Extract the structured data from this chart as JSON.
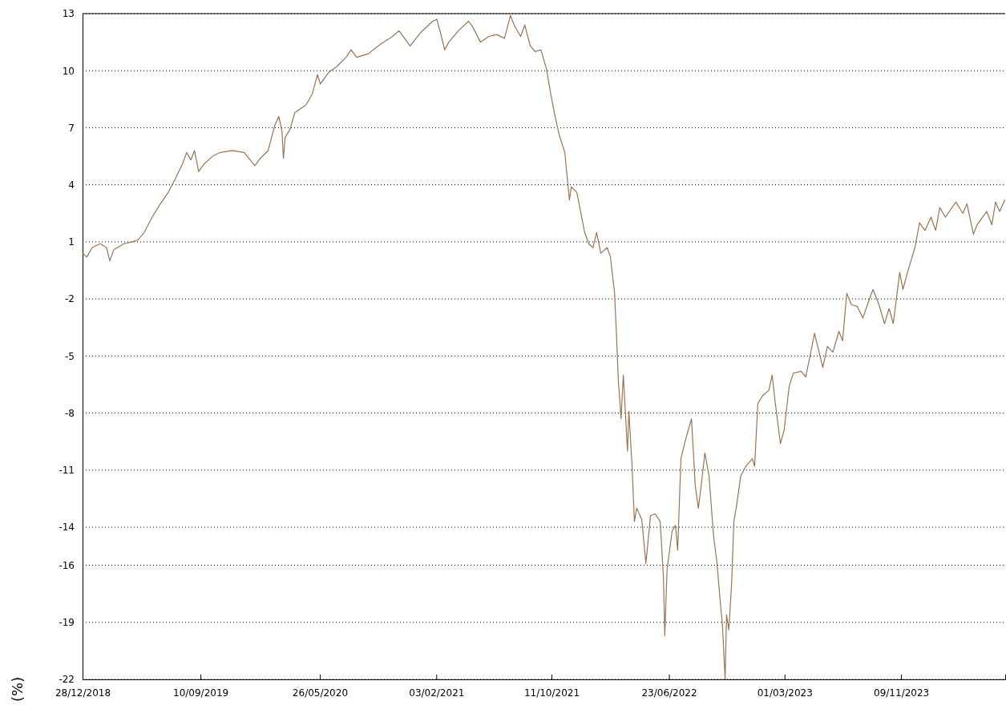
{
  "chart_data": {
    "type": "line",
    "ylabel": "(%)",
    "xlim": [
      "2018-12-28",
      "2024-06-22"
    ],
    "xticks": [
      {
        "value": "2018-12-28",
        "label": "28/12/2018"
      },
      {
        "value": "2019-09-10",
        "label": "10/09/2019"
      },
      {
        "value": "2020-05-26",
        "label": "26/05/2020"
      },
      {
        "value": "2021-02-03",
        "label": "03/02/2021"
      },
      {
        "value": "2021-10-11",
        "label": "11/10/2021"
      },
      {
        "value": "2022-06-23",
        "label": "23/06/2022"
      },
      {
        "value": "2023-03-01",
        "label": "01/03/2023"
      },
      {
        "value": "2023-11-09",
        "label": "09/11/2023"
      }
    ],
    "ylim": [
      -22,
      13
    ],
    "yticks": [
      13,
      10,
      7,
      4,
      1,
      -2,
      -5,
      -8,
      -11,
      -14,
      -16,
      -19,
      -22
    ],
    "grid": "y",
    "line_style": "solid",
    "marker": "none",
    "series": [
      {
        "color": "#9a7452",
        "x": [
          "2018-12-28",
          "2019-01-06",
          "2019-01-18",
          "2019-02-04",
          "2019-02-18",
          "2019-02-25",
          "2019-03-06",
          "2019-03-28",
          "2019-04-15",
          "2019-04-27",
          "2019-05-11",
          "2019-05-28",
          "2019-06-15",
          "2019-07-02",
          "2019-07-19",
          "2019-08-02",
          "2019-08-11",
          "2019-08-20",
          "2019-08-28",
          "2019-09-06",
          "2019-09-18",
          "2019-10-06",
          "2019-10-23",
          "2019-11-18",
          "2019-12-14",
          "2020-01-06",
          "2020-01-18",
          "2020-02-04",
          "2020-02-18",
          "2020-02-27",
          "2020-03-05",
          "2020-03-08",
          "2020-03-12",
          "2020-03-22",
          "2020-04-02",
          "2020-04-14",
          "2020-04-26",
          "2020-05-10",
          "2020-05-21",
          "2020-05-27",
          "2020-06-14",
          "2020-07-01",
          "2020-07-22",
          "2020-08-02",
          "2020-08-14",
          "2020-09-09",
          "2020-10-05",
          "2020-10-31",
          "2020-11-14",
          "2020-11-26",
          "2020-12-08",
          "2020-12-31",
          "2021-01-26",
          "2021-02-04",
          "2021-02-12",
          "2021-02-21",
          "2021-03-02",
          "2021-03-23",
          "2021-04-14",
          "2021-04-23",
          "2021-05-10",
          "2021-05-28",
          "2021-06-14",
          "2021-07-01",
          "2021-07-14",
          "2021-07-22",
          "2021-08-05",
          "2021-08-14",
          "2021-08-26",
          "2021-09-06",
          "2021-09-18",
          "2021-09-30",
          "2021-10-10",
          "2021-10-17",
          "2021-10-28",
          "2021-11-09",
          "2021-11-12",
          "2021-11-19",
          "2021-11-23",
          "2021-12-05",
          "2021-12-14",
          "2021-12-22",
          "2021-12-31",
          "2022-01-09",
          "2022-01-17",
          "2022-01-26",
          "2022-02-09",
          "2022-02-16",
          "2022-02-25",
          "2022-03-02",
          "2022-03-05",
          "2022-03-11",
          "2022-03-16",
          "2022-03-25",
          "2022-03-28",
          "2022-04-04",
          "2022-04-09",
          "2022-04-14",
          "2022-04-25",
          "2022-05-04",
          "2022-05-14",
          "2022-05-24",
          "2022-06-04",
          "2022-06-11",
          "2022-06-14",
          "2022-06-19",
          "2022-06-30",
          "2022-07-07",
          "2022-07-12",
          "2022-07-19",
          "2022-07-29",
          "2022-08-11",
          "2022-08-19",
          "2022-08-26",
          "2022-09-02",
          "2022-09-09",
          "2022-09-18",
          "2022-09-28",
          "2022-10-05",
          "2022-10-12",
          "2022-10-17",
          "2022-10-23",
          "2022-10-26",
          "2022-10-31",
          "2022-11-06",
          "2022-11-11",
          "2022-11-16",
          "2022-11-26",
          "2022-12-07",
          "2022-12-21",
          "2022-12-26",
          "2023-01-02",
          "2023-01-12",
          "2023-01-26",
          "2023-02-02",
          "2023-02-09",
          "2023-02-20",
          "2023-02-28",
          "2023-03-11",
          "2023-03-20",
          "2023-04-06",
          "2023-04-16",
          "2023-04-27",
          "2023-05-05",
          "2023-05-23",
          "2023-06-02",
          "2023-06-14",
          "2023-06-27",
          "2023-07-05",
          "2023-07-14",
          "2023-07-24",
          "2023-08-06",
          "2023-08-18",
          "2023-08-28",
          "2023-09-09",
          "2023-09-22",
          "2023-10-04",
          "2023-10-14",
          "2023-10-23",
          "2023-11-06",
          "2023-11-13",
          "2023-11-23",
          "2023-12-09",
          "2023-12-19",
          "2023-12-31",
          "2024-01-13",
          "2024-01-23",
          "2024-02-01",
          "2024-02-13",
          "2024-03-07",
          "2024-03-22",
          "2024-03-31",
          "2024-04-14",
          "2024-04-22",
          "2024-05-13",
          "2024-05-24",
          "2024-06-01",
          "2024-06-10",
          "2024-06-21"
        ],
        "values": [
          0.4,
          0.2,
          0.7,
          0.9,
          0.7,
          0.0,
          0.6,
          0.9,
          1.0,
          1.1,
          1.5,
          2.3,
          3.0,
          3.6,
          4.4,
          5.1,
          5.7,
          5.3,
          5.8,
          4.7,
          5.1,
          5.5,
          5.7,
          5.8,
          5.7,
          5.0,
          5.4,
          5.8,
          7.1,
          7.6,
          6.8,
          5.4,
          6.5,
          6.9,
          7.8,
          8.0,
          8.2,
          8.8,
          9.8,
          9.3,
          9.9,
          10.2,
          10.7,
          11.1,
          10.7,
          10.9,
          11.4,
          11.8,
          12.1,
          11.7,
          11.3,
          12.0,
          12.6,
          12.7,
          12.0,
          11.1,
          11.5,
          12.1,
          12.6,
          12.3,
          11.5,
          11.8,
          11.9,
          11.7,
          12.9,
          12.4,
          11.8,
          12.4,
          11.3,
          11.0,
          11.1,
          10.1,
          8.7,
          7.8,
          6.6,
          5.7,
          4.9,
          3.2,
          3.9,
          3.6,
          2.5,
          1.5,
          0.9,
          0.7,
          1.5,
          0.4,
          0.7,
          0.2,
          -1.7,
          -4.4,
          -6.2,
          -8.3,
          -6.0,
          -10.0,
          -7.9,
          -10.8,
          -13.7,
          -13.0,
          -13.6,
          -15.9,
          -13.4,
          -13.3,
          -13.7,
          -16.6,
          -19.7,
          -16.2,
          -14.2,
          -13.9,
          -15.2,
          -10.4,
          -9.4,
          -8.3,
          -11.8,
          -13.0,
          -11.6,
          -10.1,
          -11.3,
          -14.5,
          -15.8,
          -17.8,
          -19.1,
          -22.0,
          -18.6,
          -19.4,
          -17.0,
          -13.7,
          -13.0,
          -11.3,
          -10.8,
          -10.4,
          -10.8,
          -7.5,
          -7.1,
          -6.8,
          -6.0,
          -7.5,
          -9.6,
          -8.9,
          -6.6,
          -5.9,
          -5.8,
          -6.1,
          -4.8,
          -3.8,
          -5.6,
          -4.5,
          -4.8,
          -3.7,
          -4.2,
          -1.7,
          -2.3,
          -2.4,
          -3.0,
          -2.3,
          -1.5,
          -2.3,
          -3.3,
          -2.5,
          -3.3,
          -0.6,
          -1.5,
          -0.6,
          0.7,
          2.0,
          1.6,
          2.3,
          1.6,
          2.8,
          2.3,
          3.1,
          2.5,
          3.0,
          1.4,
          1.9,
          2.6,
          1.9,
          3.1,
          2.6,
          3.2
        ]
      }
    ]
  }
}
